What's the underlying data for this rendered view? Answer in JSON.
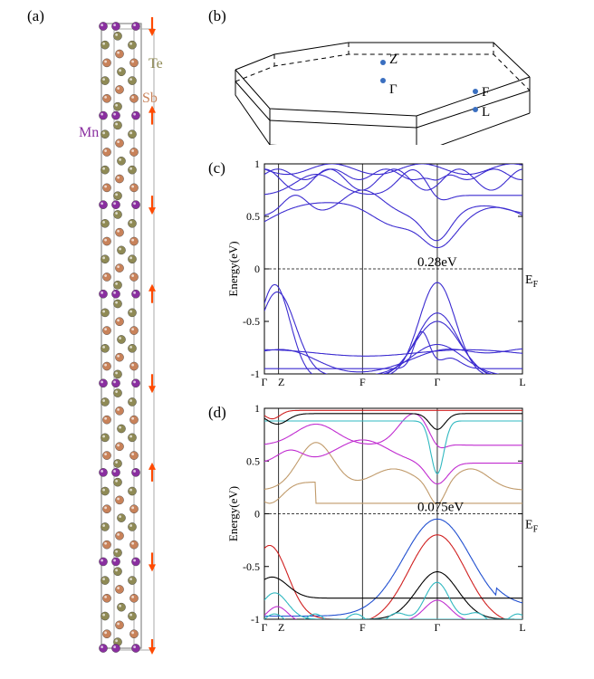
{
  "panels": {
    "a": "(a)",
    "b": "(b)",
    "c": "(c)",
    "d": "(d)"
  },
  "crystal": {
    "atom_labels": {
      "te": "Te",
      "sb": "Sb",
      "mn": "Mn"
    },
    "colors": {
      "te": "#8f8a55",
      "sb": "#c8825a",
      "mn": "#8a2fa0",
      "arrow": "#ff4a00",
      "cell": "#888888"
    },
    "spins": [
      "down",
      "up",
      "down",
      "up",
      "down",
      "up",
      "down"
    ]
  },
  "bz": {
    "points": [
      "Z",
      "Γ",
      "F",
      "L"
    ],
    "point_color": "#3a6fc0"
  },
  "chart_data": [
    {
      "type": "line",
      "panel": "(c)",
      "ylabel": "Energy(eV)",
      "ylim": [
        -1,
        1
      ],
      "yticks": [
        "1",
        "0.5",
        "0",
        "-0.5",
        "-1"
      ],
      "ytick_values": [
        1,
        0.5,
        0,
        -0.5,
        -1
      ],
      "kpath": [
        "Γ",
        "Z",
        "F",
        "Γ",
        "L"
      ],
      "kpos": [
        0,
        0.055,
        0.38,
        0.67,
        1.0
      ],
      "gap_label": "0.28eV",
      "fermi_label": "E",
      "fermi_sub": "F",
      "line_color": "#3b2bd0",
      "gap_eV": 0.28
    },
    {
      "type": "line",
      "panel": "(d)",
      "ylabel": "Energy(eV)",
      "ylim": [
        -1,
        1
      ],
      "yticks": [
        "1",
        "0.5",
        "0",
        "-0.5",
        "-1"
      ],
      "ytick_values": [
        1,
        0.5,
        0,
        -0.5,
        -1
      ],
      "kpath": [
        "Γ",
        "Z",
        "F",
        "Γ",
        "L"
      ],
      "kpos": [
        0,
        0.055,
        0.38,
        0.67,
        1.0
      ],
      "gap_label": "0.075eV",
      "fermi_label": "E",
      "fermi_sub": "F",
      "band_colors": {
        "conduction_low": "#c09a6a",
        "conduction_high": "#c02bd0",
        "valence_top": "#2250d0",
        "valence_2": "#d02020",
        "valence_3": "#000000",
        "valence_4": "#30b8c0",
        "valence_5": "#c030d0"
      },
      "gap_eV": 0.075
    }
  ]
}
